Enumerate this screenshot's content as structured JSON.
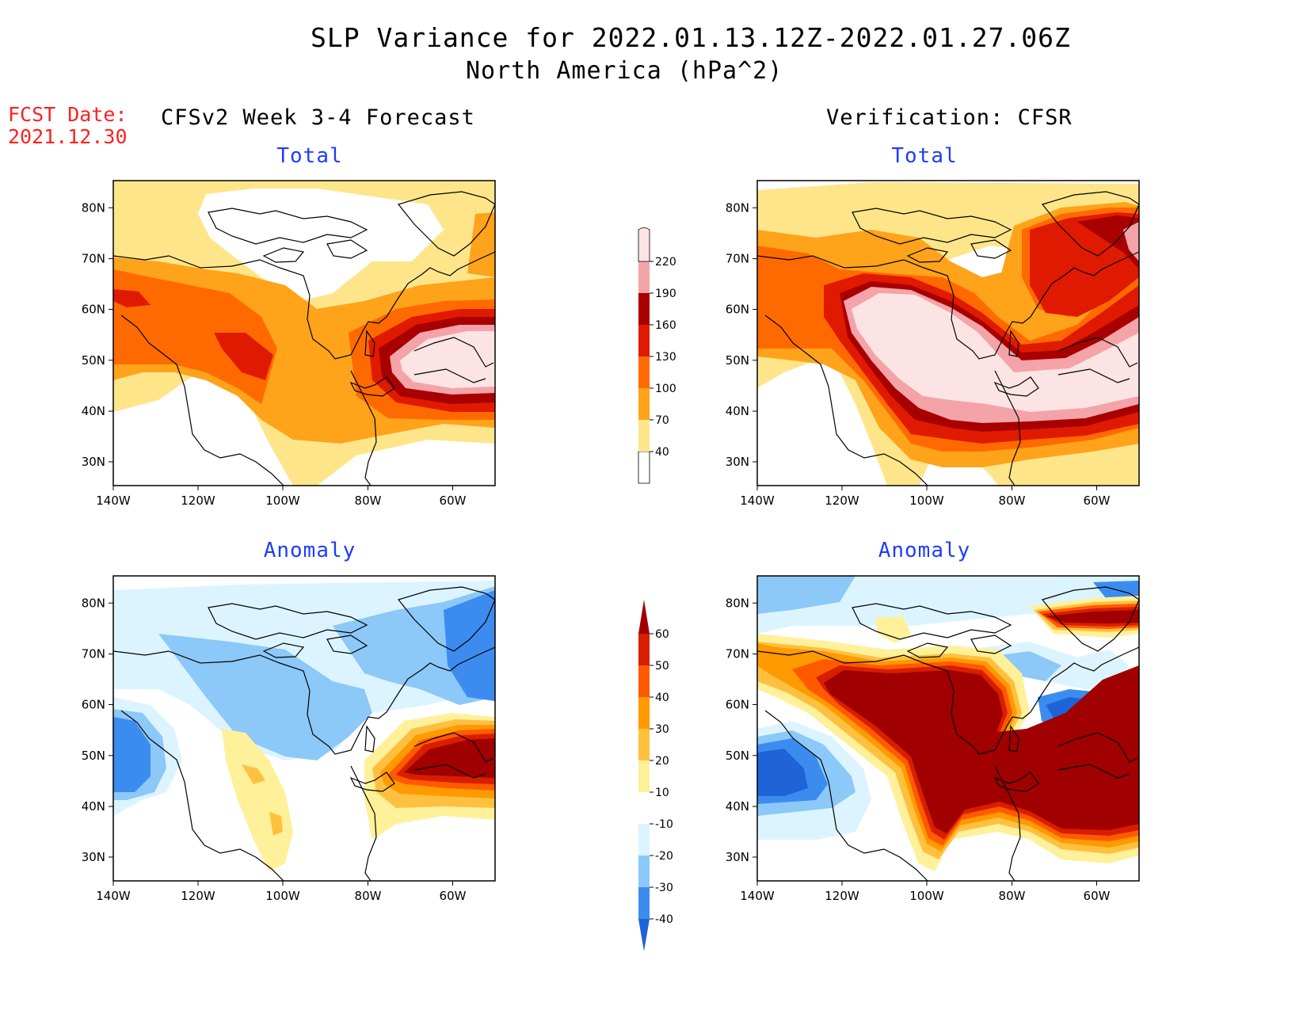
{
  "title": "SLP Variance for 2022.01.13.12Z-2022.01.27.06Z",
  "subtitle": "North America (hPa^2)",
  "fcst_label": "FCST Date:",
  "fcst_date": "2021.12.30",
  "left_header": "CFSv2 Week 3-4 Forecast",
  "right_header": "Verification: CFSR",
  "panels": [
    {
      "title": "Total"
    },
    {
      "title": "Total"
    },
    {
      "title": "Anomaly"
    },
    {
      "title": "Anomaly"
    }
  ],
  "map": {
    "lon_ticks": [
      "140W",
      "120W",
      "100W",
      "80W",
      "60W"
    ],
    "lat_ticks": [
      "80N",
      "70N",
      "60N",
      "50N",
      "40N",
      "30N"
    ]
  },
  "colorbars": {
    "total": {
      "labels": [
        "40",
        "70",
        "100",
        "130",
        "160",
        "190",
        "220"
      ],
      "colors": [
        "#ffffff",
        "#ffe58a",
        "#ffa31a",
        "#ff6a00",
        "#e01a00",
        "#a80000",
        "#f4a3a8",
        "#fde4e4"
      ]
    },
    "anomaly": {
      "labels": [
        "-40",
        "-30",
        "-20",
        "-10",
        "10",
        "20",
        "30",
        "40",
        "50",
        "60"
      ],
      "colors": [
        "#1e64d8",
        "#3c8cf0",
        "#8cc8f8",
        "#dcf4ff",
        "#ffffff",
        "#fff09a",
        "#ffc040",
        "#ff9a00",
        "#ff5a00",
        "#d81e00",
        "#a00000"
      ]
    }
  }
}
